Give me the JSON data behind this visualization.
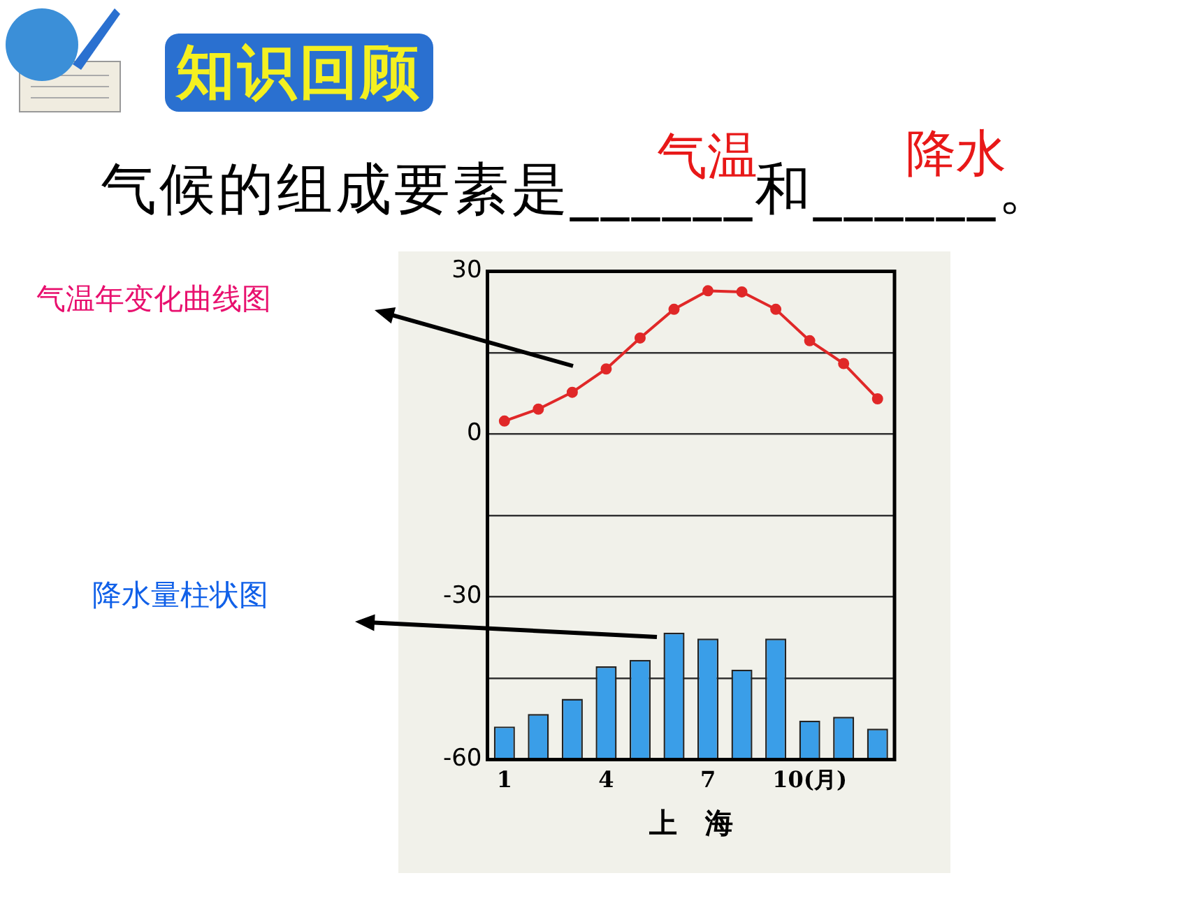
{
  "chart_data": {
    "type": "bar",
    "title": "知识回顾",
    "subtitle": "气候的组成要素是______和______。",
    "annotations": [
      "气温",
      "降水",
      "气温年变化曲线图",
      "降水量柱状图"
    ],
    "xlabel": "上　海",
    "categories": [
      "1",
      null,
      null,
      "4",
      null,
      null,
      "7",
      null,
      null,
      "10(月)",
      null,
      null
    ],
    "series": [
      {
        "color": "#3a9ee8",
        "base": [
          -60,
          -60,
          -60,
          -60,
          -60,
          -60,
          -60,
          -60,
          -60,
          -60,
          -60,
          -60
        ],
        "values": [
          6.1,
          8.4,
          11.2,
          17.2,
          18.4,
          23.4,
          22.3,
          16.6,
          22.3,
          7.2,
          7.9,
          5.7
        ]
      },
      {
        "type": "line",
        "color": "#e02828",
        "marker": "circle",
        "values": [
          2.4,
          4.6,
          7.7,
          12.0,
          17.7,
          23.0,
          26.4,
          26.2,
          23.0,
          17.2,
          13.0,
          6.5
        ]
      }
    ],
    "ylim": [
      -60,
      30
    ],
    "yticks": [
      -60,
      {
        "value": -45,
        "label": null
      },
      -30,
      {
        "value": -15,
        "label": null
      },
      0,
      {
        "value": 15,
        "label": null
      },
      30
    ],
    "grid": "y"
  }
}
